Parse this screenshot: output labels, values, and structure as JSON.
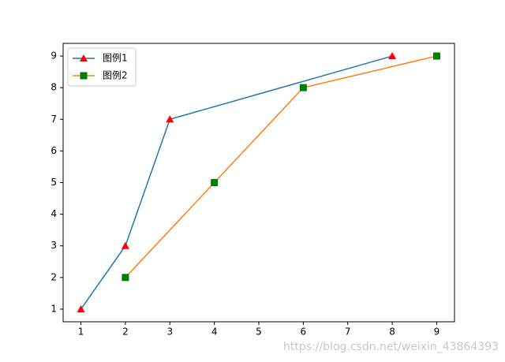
{
  "chart_data": {
    "type": "line",
    "series": [
      {
        "name": "图例1",
        "color": "#1f77b4",
        "marker": "triangle",
        "marker_color": "#ff0000",
        "x": [
          1,
          2,
          3,
          8
        ],
        "values": [
          1,
          3,
          7,
          9
        ]
      },
      {
        "name": "图例2",
        "color": "#ff7f0e",
        "marker": "square",
        "marker_color": "#008000",
        "x": [
          2,
          4,
          6,
          9
        ],
        "values": [
          2,
          5,
          8,
          9
        ]
      }
    ],
    "xlim": [
      0.6,
      9.4
    ],
    "ylim": [
      0.6,
      9.4
    ],
    "xticks": [
      1,
      2,
      3,
      4,
      5,
      6,
      7,
      8,
      9
    ],
    "yticks": [
      1,
      2,
      3,
      4,
      5,
      6,
      7,
      8,
      9
    ],
    "legend": "upper left",
    "watermark": "https://blog.csdn.net/weixin_43864393"
  }
}
